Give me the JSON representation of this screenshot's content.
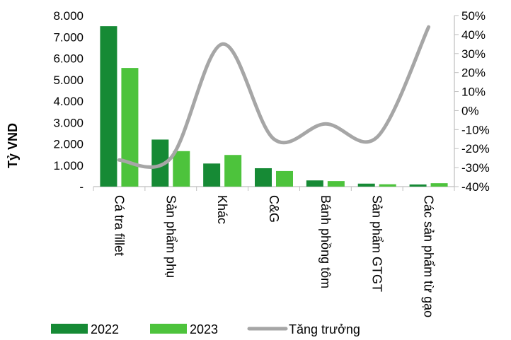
{
  "chart_data": {
    "type": "bar",
    "ylabel": "Tỷ VND",
    "categories": [
      "Cá tra fillet",
      "Sản phẩm phụ",
      "Khác",
      "C&G",
      "Bánh phồng tôm",
      "Sản phẩm GTGT",
      "Các sản phẩm từ gạo"
    ],
    "series": [
      {
        "name": "2022",
        "type": "bar",
        "color": "#168a35",
        "axis": "left",
        "values": [
          7500,
          2200,
          1080,
          860,
          290,
          140,
          100
        ]
      },
      {
        "name": "2023",
        "type": "bar",
        "color": "#4dc33c",
        "axis": "left",
        "values": [
          5550,
          1660,
          1480,
          730,
          260,
          110,
          160
        ]
      },
      {
        "name": "Tăng trưởng",
        "type": "line",
        "color": "#a6a6a6",
        "axis": "right",
        "values": [
          -26,
          -25,
          35,
          -15,
          -7,
          -14,
          44
        ]
      }
    ],
    "ylim": [
      0,
      8000
    ],
    "yticks": [
      "-",
      "1.000",
      "2.000",
      "3.000",
      "4.000",
      "5.000",
      "6.000",
      "7.000",
      "8.000"
    ],
    "y2lim": [
      -40,
      50
    ],
    "y2ticks": [
      "-40%",
      "-30%",
      "-20%",
      "-10%",
      "0%",
      "10%",
      "20%",
      "30%",
      "40%",
      "50%"
    ],
    "grid": false,
    "legend_position": "bottom"
  }
}
